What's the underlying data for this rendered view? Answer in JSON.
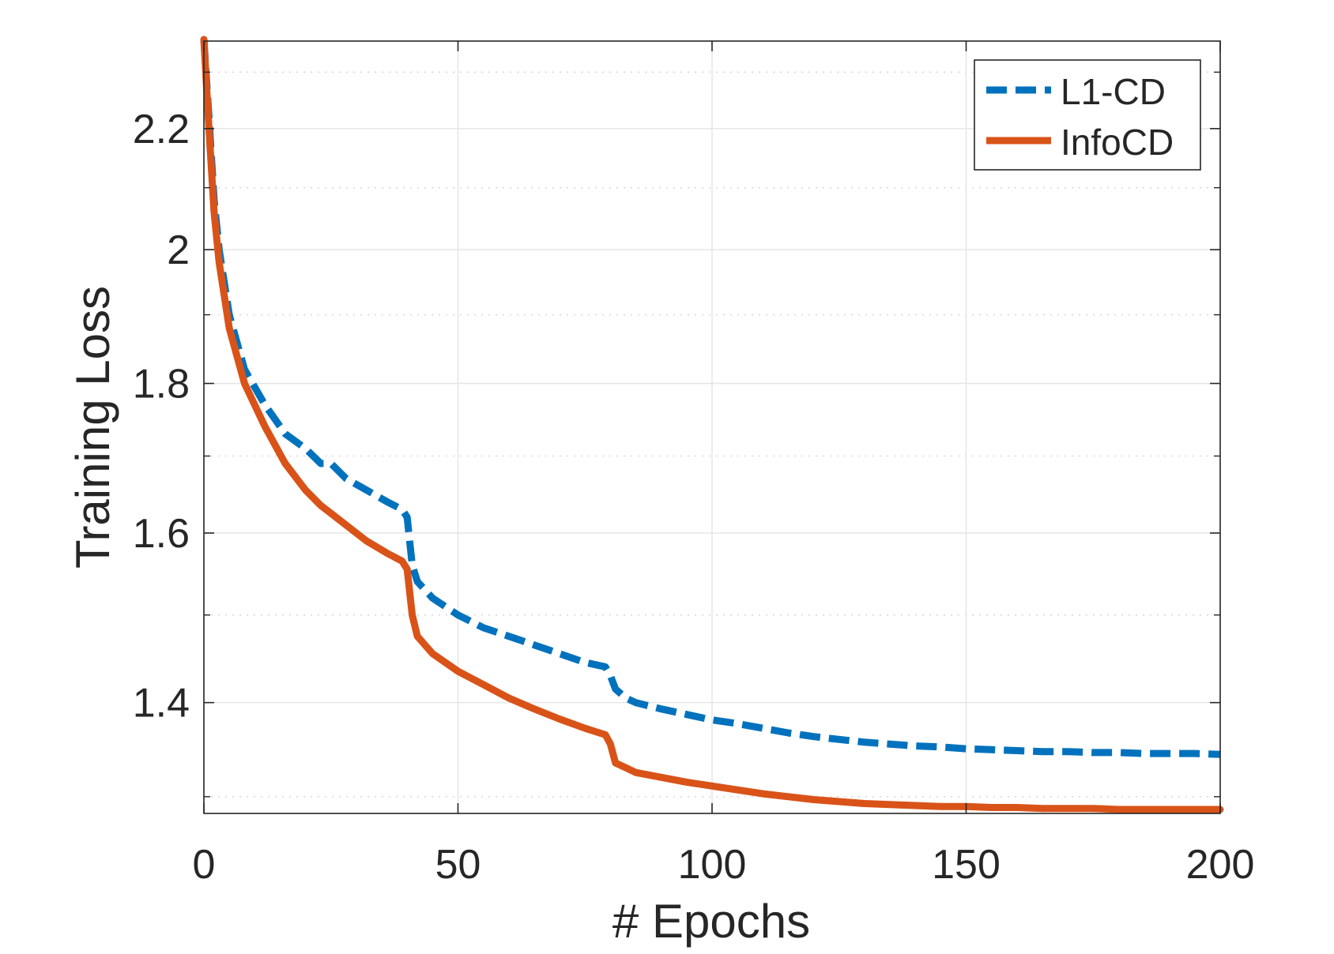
{
  "chart_data": {
    "type": "line",
    "title": "",
    "xlabel": "# Epochs",
    "ylabel": "Training Loss",
    "xlim": [
      0,
      200
    ],
    "ylim": [
      1.283,
      2.357
    ],
    "xticks": [
      0,
      50,
      100,
      150,
      200
    ],
    "xtick_labels": [
      "0",
      "50",
      "100",
      "150",
      "200"
    ],
    "yticks": [
      1.4,
      1.6,
      1.8,
      2.0,
      2.2
    ],
    "ytick_labels": [
      "1.4",
      "1.6",
      "1.8",
      "2",
      "2.2"
    ],
    "y_scale": "log",
    "grid": true,
    "minor_grid": true,
    "legend_position": "top-right",
    "series": [
      {
        "name": "L1-CD",
        "color": "#0072BD",
        "style": "dashed",
        "x": [
          0,
          1,
          2,
          3,
          5,
          8,
          12,
          16,
          20,
          23,
          25,
          28,
          32,
          36,
          39,
          40,
          41,
          42,
          45,
          50,
          55,
          60,
          65,
          70,
          75,
          79,
          80,
          81,
          83,
          85,
          90,
          95,
          100,
          105,
          110,
          115,
          120,
          125,
          130,
          135,
          140,
          145,
          150,
          155,
          160,
          165,
          170,
          175,
          180,
          185,
          190,
          195,
          200
        ],
        "y": [
          2.36,
          2.22,
          2.08,
          2.0,
          1.9,
          1.82,
          1.77,
          1.73,
          1.71,
          1.69,
          1.69,
          1.67,
          1.655,
          1.64,
          1.63,
          1.62,
          1.56,
          1.54,
          1.52,
          1.5,
          1.485,
          1.475,
          1.465,
          1.455,
          1.445,
          1.44,
          1.43,
          1.415,
          1.405,
          1.4,
          1.393,
          1.387,
          1.381,
          1.377,
          1.372,
          1.367,
          1.363,
          1.36,
          1.357,
          1.355,
          1.353,
          1.352,
          1.35,
          1.349,
          1.348,
          1.347,
          1.347,
          1.346,
          1.346,
          1.345,
          1.345,
          1.345,
          1.344
        ]
      },
      {
        "name": "InfoCD",
        "color": "#D95319",
        "style": "solid",
        "x": [
          0,
          1,
          2,
          3,
          5,
          8,
          12,
          16,
          20,
          23,
          25,
          28,
          32,
          36,
          39,
          40,
          41,
          42,
          45,
          50,
          55,
          60,
          65,
          70,
          75,
          79,
          80,
          81,
          83,
          85,
          90,
          95,
          100,
          105,
          110,
          115,
          120,
          125,
          130,
          135,
          140,
          145,
          150,
          155,
          160,
          165,
          170,
          175,
          180,
          185,
          190,
          195,
          200
        ],
        "y": [
          2.36,
          2.2,
          2.06,
          1.98,
          1.88,
          1.8,
          1.74,
          1.69,
          1.655,
          1.635,
          1.625,
          1.61,
          1.59,
          1.575,
          1.565,
          1.555,
          1.5,
          1.475,
          1.455,
          1.435,
          1.42,
          1.405,
          1.393,
          1.382,
          1.372,
          1.365,
          1.355,
          1.335,
          1.33,
          1.325,
          1.32,
          1.315,
          1.311,
          1.307,
          1.303,
          1.3,
          1.297,
          1.295,
          1.293,
          1.292,
          1.291,
          1.29,
          1.29,
          1.289,
          1.289,
          1.288,
          1.288,
          1.288,
          1.287,
          1.287,
          1.287,
          1.287,
          1.287
        ]
      }
    ]
  }
}
